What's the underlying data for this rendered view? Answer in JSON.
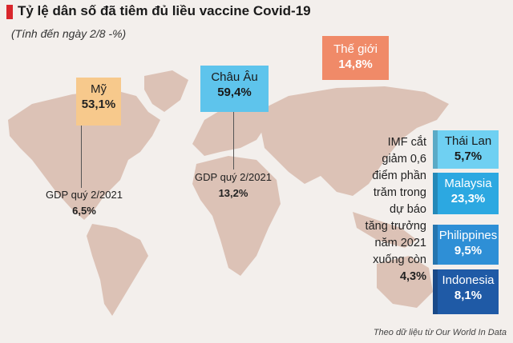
{
  "header": {
    "title": "Tỷ lệ dân số đã tiêm đủ liều vaccine Covid-19",
    "subtitle": "(Tính đến ngày 2/8 -%)"
  },
  "regions": [
    {
      "name": "Mỹ",
      "value": "53,1%"
    },
    {
      "name": "Châu Âu",
      "value": "59,4%"
    },
    {
      "name": "Thế giới",
      "value": "14,8%"
    }
  ],
  "gdp": [
    {
      "label": "GDP quý 2/2021",
      "value": "6,5%"
    },
    {
      "label": "GDP quý 2/2021",
      "value": "13,2%"
    }
  ],
  "imf_note": {
    "lines": [
      "IMF cắt",
      "giảm 0,6",
      "điểm phần",
      "trăm trong",
      "dự báo",
      "tăng trưởng",
      "năm 2021",
      "xuống còn"
    ],
    "value": "4,3%"
  },
  "asean": [
    {
      "name": "Thái Lan",
      "value": "5,7%"
    },
    {
      "name": "Malaysia",
      "value": "23,3%"
    },
    {
      "name": "Philippines",
      "value": "9,5%"
    },
    {
      "name": "Indonesia",
      "value": "8,1%"
    }
  ],
  "source": "Theo dữ liệu từ Our World In Data"
}
